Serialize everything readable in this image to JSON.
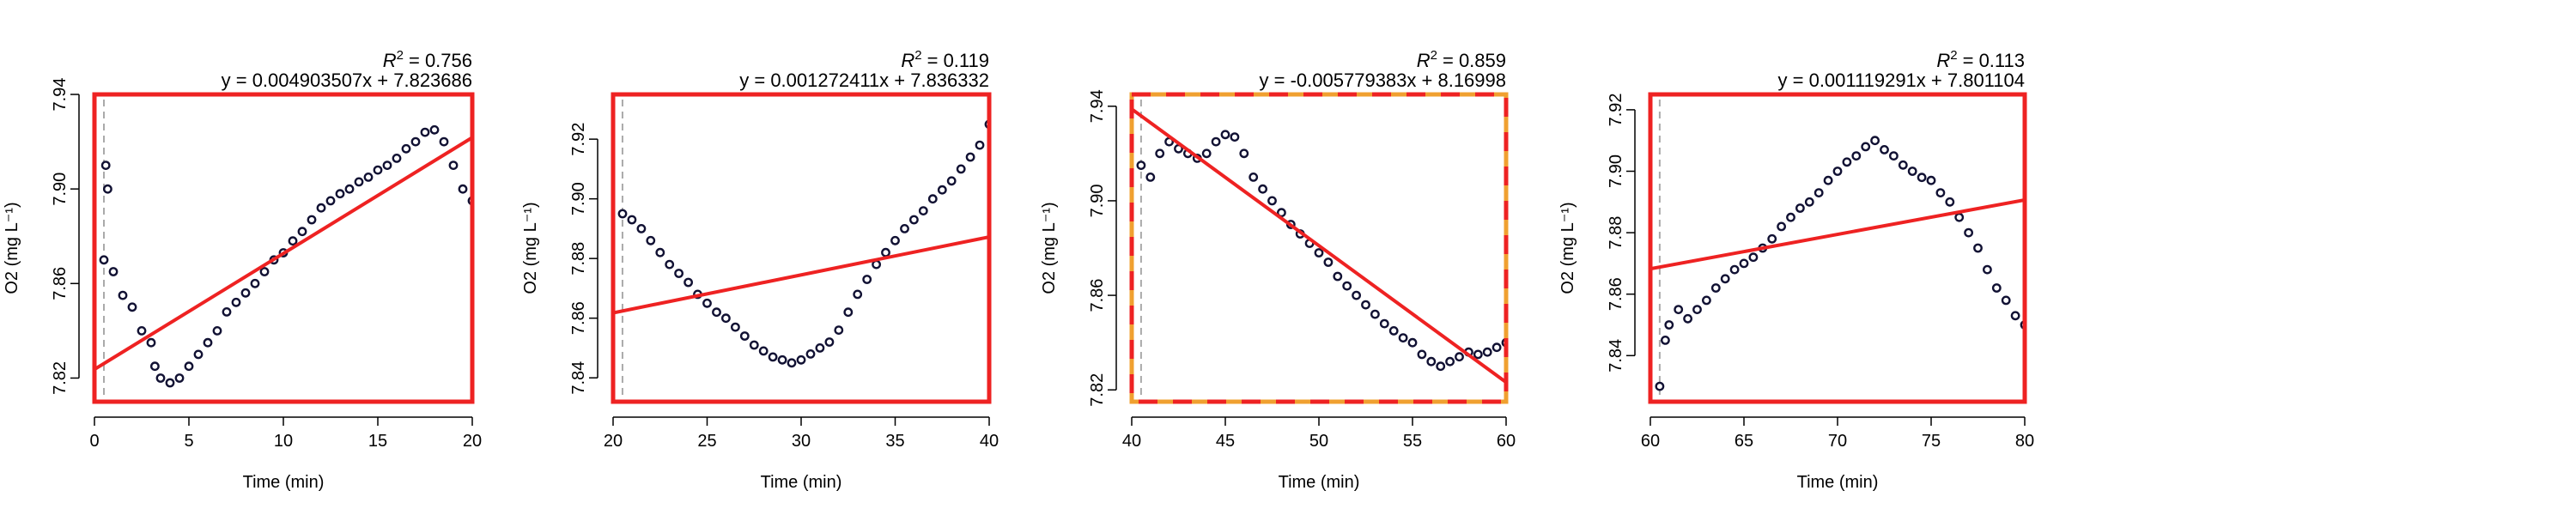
{
  "chart_data": [
    {
      "type": "scatter",
      "r2_prefix": "R",
      "r2_sup": "2",
      "r2_value": "= 0.756",
      "equation": "y = 0.004903507x + 7.823686",
      "xlabel": "Time (min)",
      "ylabel": "O2 (mg L⁻¹)",
      "xlim": [
        0,
        20
      ],
      "ylim": [
        7.81,
        7.94
      ],
      "xticks": [
        0,
        5,
        10,
        15,
        20
      ],
      "yticks": [
        7.82,
        7.86,
        7.9,
        7.94
      ],
      "ytick_labels": [
        "7.82",
        "7.86",
        "7.90",
        "7.94"
      ],
      "fit": {
        "slope": 0.004903507,
        "intercept": 7.823686
      },
      "marker_x": 0.5,
      "highlighted": false,
      "points": [
        [
          0.5,
          7.87
        ],
        [
          0.6,
          7.91
        ],
        [
          0.7,
          7.9
        ],
        [
          1.0,
          7.865
        ],
        [
          1.5,
          7.855
        ],
        [
          2.0,
          7.85
        ],
        [
          2.5,
          7.84
        ],
        [
          3.0,
          7.835
        ],
        [
          3.2,
          7.825
        ],
        [
          3.5,
          7.82
        ],
        [
          4.0,
          7.818
        ],
        [
          4.5,
          7.82
        ],
        [
          5.0,
          7.825
        ],
        [
          5.5,
          7.83
        ],
        [
          6.0,
          7.835
        ],
        [
          6.5,
          7.84
        ],
        [
          7.0,
          7.848
        ],
        [
          7.5,
          7.852
        ],
        [
          8.0,
          7.856
        ],
        [
          8.5,
          7.86
        ],
        [
          9.0,
          7.865
        ],
        [
          9.5,
          7.87
        ],
        [
          10.0,
          7.873
        ],
        [
          10.5,
          7.878
        ],
        [
          11.0,
          7.882
        ],
        [
          11.5,
          7.887
        ],
        [
          12.0,
          7.892
        ],
        [
          12.5,
          7.895
        ],
        [
          13.0,
          7.898
        ],
        [
          13.5,
          7.9
        ],
        [
          14.0,
          7.903
        ],
        [
          14.5,
          7.905
        ],
        [
          15.0,
          7.908
        ],
        [
          15.5,
          7.91
        ],
        [
          16.0,
          7.913
        ],
        [
          16.5,
          7.917
        ],
        [
          17.0,
          7.92
        ],
        [
          17.5,
          7.924
        ],
        [
          18.0,
          7.925
        ],
        [
          18.5,
          7.92
        ],
        [
          19.0,
          7.91
        ],
        [
          19.5,
          7.9
        ],
        [
          20.0,
          7.895
        ]
      ]
    },
    {
      "type": "scatter",
      "r2_prefix": "R",
      "r2_sup": "2",
      "r2_value": "= 0.119",
      "equation": "y = 0.001272411x + 7.836332",
      "xlabel": "Time (min)",
      "ylabel": "O2 (mg L⁻¹)",
      "xlim": [
        20,
        40
      ],
      "ylim": [
        7.832,
        7.935
      ],
      "xticks": [
        20,
        25,
        30,
        35,
        40
      ],
      "yticks": [
        7.84,
        7.86,
        7.88,
        7.9,
        7.92
      ],
      "ytick_labels": [
        "7.84",
        "7.86",
        "7.88",
        "7.90",
        "7.92"
      ],
      "fit": {
        "slope": 0.001272411,
        "intercept": 7.836332
      },
      "marker_x": 20.5,
      "highlighted": false,
      "points": [
        [
          20.5,
          7.895
        ],
        [
          21.0,
          7.893
        ],
        [
          21.5,
          7.89
        ],
        [
          22.0,
          7.886
        ],
        [
          22.5,
          7.882
        ],
        [
          23.0,
          7.878
        ],
        [
          23.5,
          7.875
        ],
        [
          24.0,
          7.872
        ],
        [
          24.5,
          7.868
        ],
        [
          25.0,
          7.865
        ],
        [
          25.5,
          7.862
        ],
        [
          26.0,
          7.86
        ],
        [
          26.5,
          7.857
        ],
        [
          27.0,
          7.854
        ],
        [
          27.5,
          7.851
        ],
        [
          28.0,
          7.849
        ],
        [
          28.5,
          7.847
        ],
        [
          29.0,
          7.846
        ],
        [
          29.5,
          7.845
        ],
        [
          30.0,
          7.846
        ],
        [
          30.5,
          7.848
        ],
        [
          31.0,
          7.85
        ],
        [
          31.5,
          7.852
        ],
        [
          32.0,
          7.856
        ],
        [
          32.5,
          7.862
        ],
        [
          33.0,
          7.868
        ],
        [
          33.5,
          7.873
        ],
        [
          34.0,
          7.878
        ],
        [
          34.5,
          7.882
        ],
        [
          35.0,
          7.886
        ],
        [
          35.5,
          7.89
        ],
        [
          36.0,
          7.893
        ],
        [
          36.5,
          7.896
        ],
        [
          37.0,
          7.9
        ],
        [
          37.5,
          7.903
        ],
        [
          38.0,
          7.906
        ],
        [
          38.5,
          7.91
        ],
        [
          39.0,
          7.914
        ],
        [
          39.5,
          7.918
        ],
        [
          40.0,
          7.925
        ]
      ]
    },
    {
      "type": "scatter",
      "r2_prefix": "R",
      "r2_sup": "2",
      "r2_value": "= 0.859",
      "equation": "y = -0.005779383x + 8.16998",
      "xlabel": "Time (min)",
      "ylabel": "O2 (mg L⁻¹)",
      "xlim": [
        40,
        60
      ],
      "ylim": [
        7.815,
        7.945
      ],
      "xticks": [
        40,
        45,
        50,
        55,
        60
      ],
      "yticks": [
        7.82,
        7.86,
        7.9,
        7.94
      ],
      "ytick_labels": [
        "7.82",
        "7.86",
        "7.90",
        "7.94"
      ],
      "fit": {
        "slope": -0.005779383,
        "intercept": 8.16998
      },
      "marker_x": 40.5,
      "highlighted": true,
      "points": [
        [
          40.5,
          7.915
        ],
        [
          41.0,
          7.91
        ],
        [
          41.5,
          7.92
        ],
        [
          42.0,
          7.925
        ],
        [
          42.5,
          7.922
        ],
        [
          43.0,
          7.92
        ],
        [
          43.5,
          7.918
        ],
        [
          44.0,
          7.92
        ],
        [
          44.5,
          7.925
        ],
        [
          45.0,
          7.928
        ],
        [
          45.5,
          7.927
        ],
        [
          46.0,
          7.92
        ],
        [
          46.5,
          7.91
        ],
        [
          47.0,
          7.905
        ],
        [
          47.5,
          7.9
        ],
        [
          48.0,
          7.895
        ],
        [
          48.5,
          7.89
        ],
        [
          49.0,
          7.886
        ],
        [
          49.5,
          7.882
        ],
        [
          50.0,
          7.878
        ],
        [
          50.5,
          7.874
        ],
        [
          51.0,
          7.868
        ],
        [
          51.5,
          7.864
        ],
        [
          52.0,
          7.86
        ],
        [
          52.5,
          7.856
        ],
        [
          53.0,
          7.852
        ],
        [
          53.5,
          7.848
        ],
        [
          54.0,
          7.845
        ],
        [
          54.5,
          7.842
        ],
        [
          55.0,
          7.84
        ],
        [
          55.5,
          7.835
        ],
        [
          56.0,
          7.832
        ],
        [
          56.5,
          7.83
        ],
        [
          57.0,
          7.832
        ],
        [
          57.5,
          7.834
        ],
        [
          58.0,
          7.836
        ],
        [
          58.5,
          7.835
        ],
        [
          59.0,
          7.836
        ],
        [
          59.5,
          7.838
        ],
        [
          60.0,
          7.84
        ]
      ]
    },
    {
      "type": "scatter",
      "r2_prefix": "R",
      "r2_sup": "2",
      "r2_value": "= 0.113",
      "equation": "y = 0.001119291x + 7.801104",
      "xlabel": "Time (min)",
      "ylabel": "O2 (mg L⁻¹)",
      "xlim": [
        60,
        80
      ],
      "ylim": [
        7.825,
        7.925
      ],
      "xticks": [
        60,
        65,
        70,
        75,
        80
      ],
      "yticks": [
        7.84,
        7.86,
        7.88,
        7.9,
        7.92
      ],
      "ytick_labels": [
        "7.84",
        "7.86",
        "7.88",
        "7.90",
        "7.92"
      ],
      "fit": {
        "slope": 0.001119291,
        "intercept": 7.801104
      },
      "marker_x": 60.5,
      "highlighted": false,
      "points": [
        [
          60.5,
          7.83
        ],
        [
          60.8,
          7.845
        ],
        [
          61.0,
          7.85
        ],
        [
          61.5,
          7.855
        ],
        [
          62.0,
          7.852
        ],
        [
          62.5,
          7.855
        ],
        [
          63.0,
          7.858
        ],
        [
          63.5,
          7.862
        ],
        [
          64.0,
          7.865
        ],
        [
          64.5,
          7.868
        ],
        [
          65.0,
          7.87
        ],
        [
          65.5,
          7.872
        ],
        [
          66.0,
          7.875
        ],
        [
          66.5,
          7.878
        ],
        [
          67.0,
          7.882
        ],
        [
          67.5,
          7.885
        ],
        [
          68.0,
          7.888
        ],
        [
          68.5,
          7.89
        ],
        [
          69.0,
          7.893
        ],
        [
          69.5,
          7.897
        ],
        [
          70.0,
          7.9
        ],
        [
          70.5,
          7.903
        ],
        [
          71.0,
          7.905
        ],
        [
          71.5,
          7.908
        ],
        [
          72.0,
          7.91
        ],
        [
          72.5,
          7.907
        ],
        [
          73.0,
          7.905
        ],
        [
          73.5,
          7.902
        ],
        [
          74.0,
          7.9
        ],
        [
          74.5,
          7.898
        ],
        [
          75.0,
          7.897
        ],
        [
          75.5,
          7.893
        ],
        [
          76.0,
          7.89
        ],
        [
          76.5,
          7.885
        ],
        [
          77.0,
          7.88
        ],
        [
          77.5,
          7.875
        ],
        [
          78.0,
          7.868
        ],
        [
          78.5,
          7.862
        ],
        [
          79.0,
          7.858
        ],
        [
          79.5,
          7.853
        ],
        [
          80.0,
          7.85
        ]
      ]
    }
  ],
  "colors": {
    "frame": "#ee2222",
    "fit_line": "#ee2222",
    "highlight_frame": "#f0a030",
    "points_fill": "#ffffff",
    "points_stroke": "#111133",
    "marker_line": "#aaaaaa",
    "axis": "#000000"
  }
}
